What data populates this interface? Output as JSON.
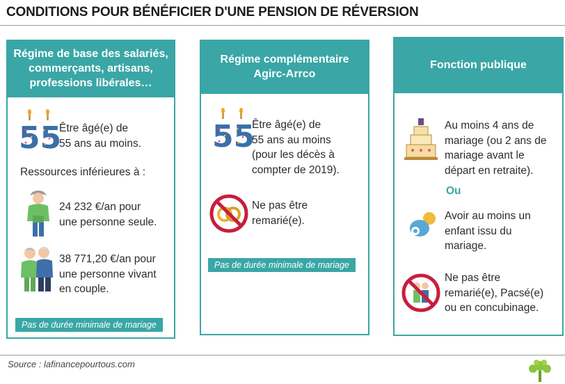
{
  "title": "CONDITIONS POUR BÉNÉFICIER D'UNE PENSION DE RÉVERSION",
  "colors": {
    "accent": "#3aa6a6",
    "red": "#c81e3c",
    "number55": "#3b6fa8"
  },
  "icons": {
    "age": "birthday-55-icon",
    "person": "person-icon",
    "couple": "couple-icon",
    "rings": "no-rings-icon",
    "cake": "wedding-cake-icon",
    "pacifier": "pacifier-icon",
    "no_couple": "no-couple-icon",
    "logo": "tree-logo-icon"
  },
  "card1": {
    "head": [
      "Régime de base des salariés,",
      "commerçants, artisans,",
      "professions libérales…"
    ],
    "age": [
      "Être âgé(e) de",
      "55 ans au moins."
    ],
    "resources": "Ressources inférieures à :",
    "single": [
      "24 232 €/an pour",
      "une personne seule."
    ],
    "couple": [
      "38 771,20 €/an pour",
      "une personne vivant",
      "en couple."
    ],
    "tag": "Pas de durée minimale de mariage"
  },
  "card2": {
    "head": [
      "Régime complémentaire",
      "Agirc-Arrco"
    ],
    "age": [
      "Être âgé(e) de",
      "55 ans au moins",
      "(pour les décès à",
      "compter de 2019)."
    ],
    "remarry": [
      "Ne pas être",
      "remarié(e)."
    ],
    "tag": "Pas de durée minimale de mariage"
  },
  "card3": {
    "head": [
      "Fonction publique"
    ],
    "marriage": [
      "Au moins 4 ans de",
      "mariage (ou 2 ans de",
      "mariage avant le",
      "départ en retraite)."
    ],
    "or": "Ou",
    "child": [
      "Avoir au moins un",
      "enfant issu du",
      "mariage."
    ],
    "remarry": [
      "Ne pas être",
      "remarié(e), Pacsé(e)",
      "ou en concubinage."
    ]
  },
  "age_number": "55",
  "source": "Source : lafinancepourtous.com"
}
